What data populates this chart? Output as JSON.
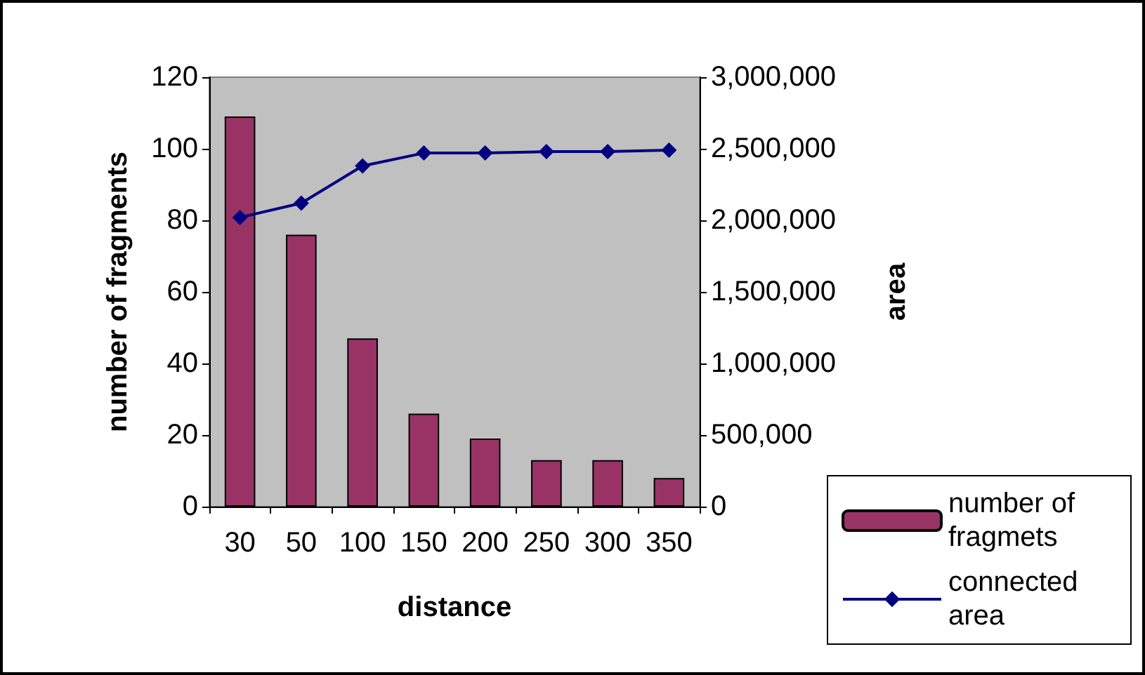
{
  "chart_data": {
    "type": "bar",
    "xlabel": "distance",
    "ylabel": "number of fragments",
    "y2label": "area",
    "categories": [
      "30",
      "50",
      "100",
      "150",
      "200",
      "250",
      "300",
      "350"
    ],
    "series": [
      {
        "name": "number of fragmets",
        "color": "#993366",
        "values": [
          109,
          76,
          47,
          26,
          19,
          13,
          13,
          8
        ]
      },
      {
        "name": "connected area",
        "type": "line",
        "axis": "y2",
        "color": "#000080",
        "marker": "diamond",
        "values": [
          2020000,
          2120000,
          2380000,
          2470000,
          2470000,
          2480000,
          2480000,
          2490000
        ]
      }
    ],
    "ylim": [
      0,
      120
    ],
    "yticks": [
      0,
      20,
      40,
      60,
      80,
      100,
      120
    ],
    "y2lim": [
      0,
      3000000
    ],
    "y2ticks": [
      0,
      {
        "value": 500000,
        "label": "500,000"
      },
      {
        "value": 1000000,
        "label": "1,000,000"
      },
      {
        "value": 1500000,
        "label": "1,500,000"
      },
      {
        "value": 2000000,
        "label": "2,000,000"
      },
      {
        "value": 2500000,
        "label": "2,500,000"
      },
      {
        "value": 3000000,
        "label": "3,000,000"
      }
    ],
    "grid": false,
    "legend": "bottom right"
  }
}
